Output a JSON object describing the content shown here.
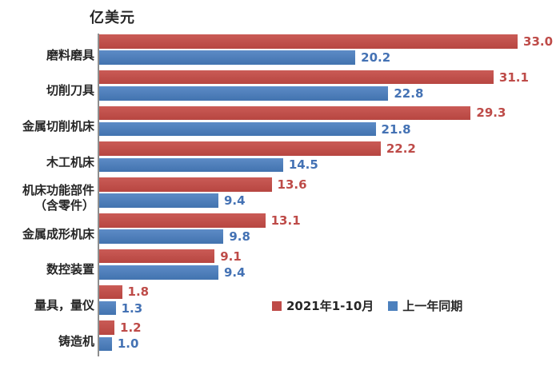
{
  "chart_data": {
    "type": "bar",
    "orientation": "horizontal",
    "unit_label": "亿美元",
    "categories": [
      "磨料磨具",
      "切削刀具",
      "金属切削机床",
      "木工机床",
      "机床功能部件\n（含零件）",
      "金属成形机床",
      "数控装置",
      "量具，量仪",
      "铸造机"
    ],
    "series": [
      {
        "name": "2021年1-10月",
        "color": "#be4b48",
        "values": [
          33.0,
          31.1,
          29.3,
          22.2,
          13.6,
          13.1,
          9.1,
          1.8,
          1.2
        ]
      },
      {
        "name": "上一年同期",
        "color": "#4c80bd",
        "values": [
          20.2,
          22.8,
          21.8,
          14.5,
          9.4,
          9.8,
          9.4,
          1.3,
          1.0
        ]
      }
    ],
    "xlim": [
      0,
      35
    ],
    "value_labels": true,
    "value_decimals": 1,
    "grid": false,
    "legend_position": "inside-right-bottom"
  }
}
